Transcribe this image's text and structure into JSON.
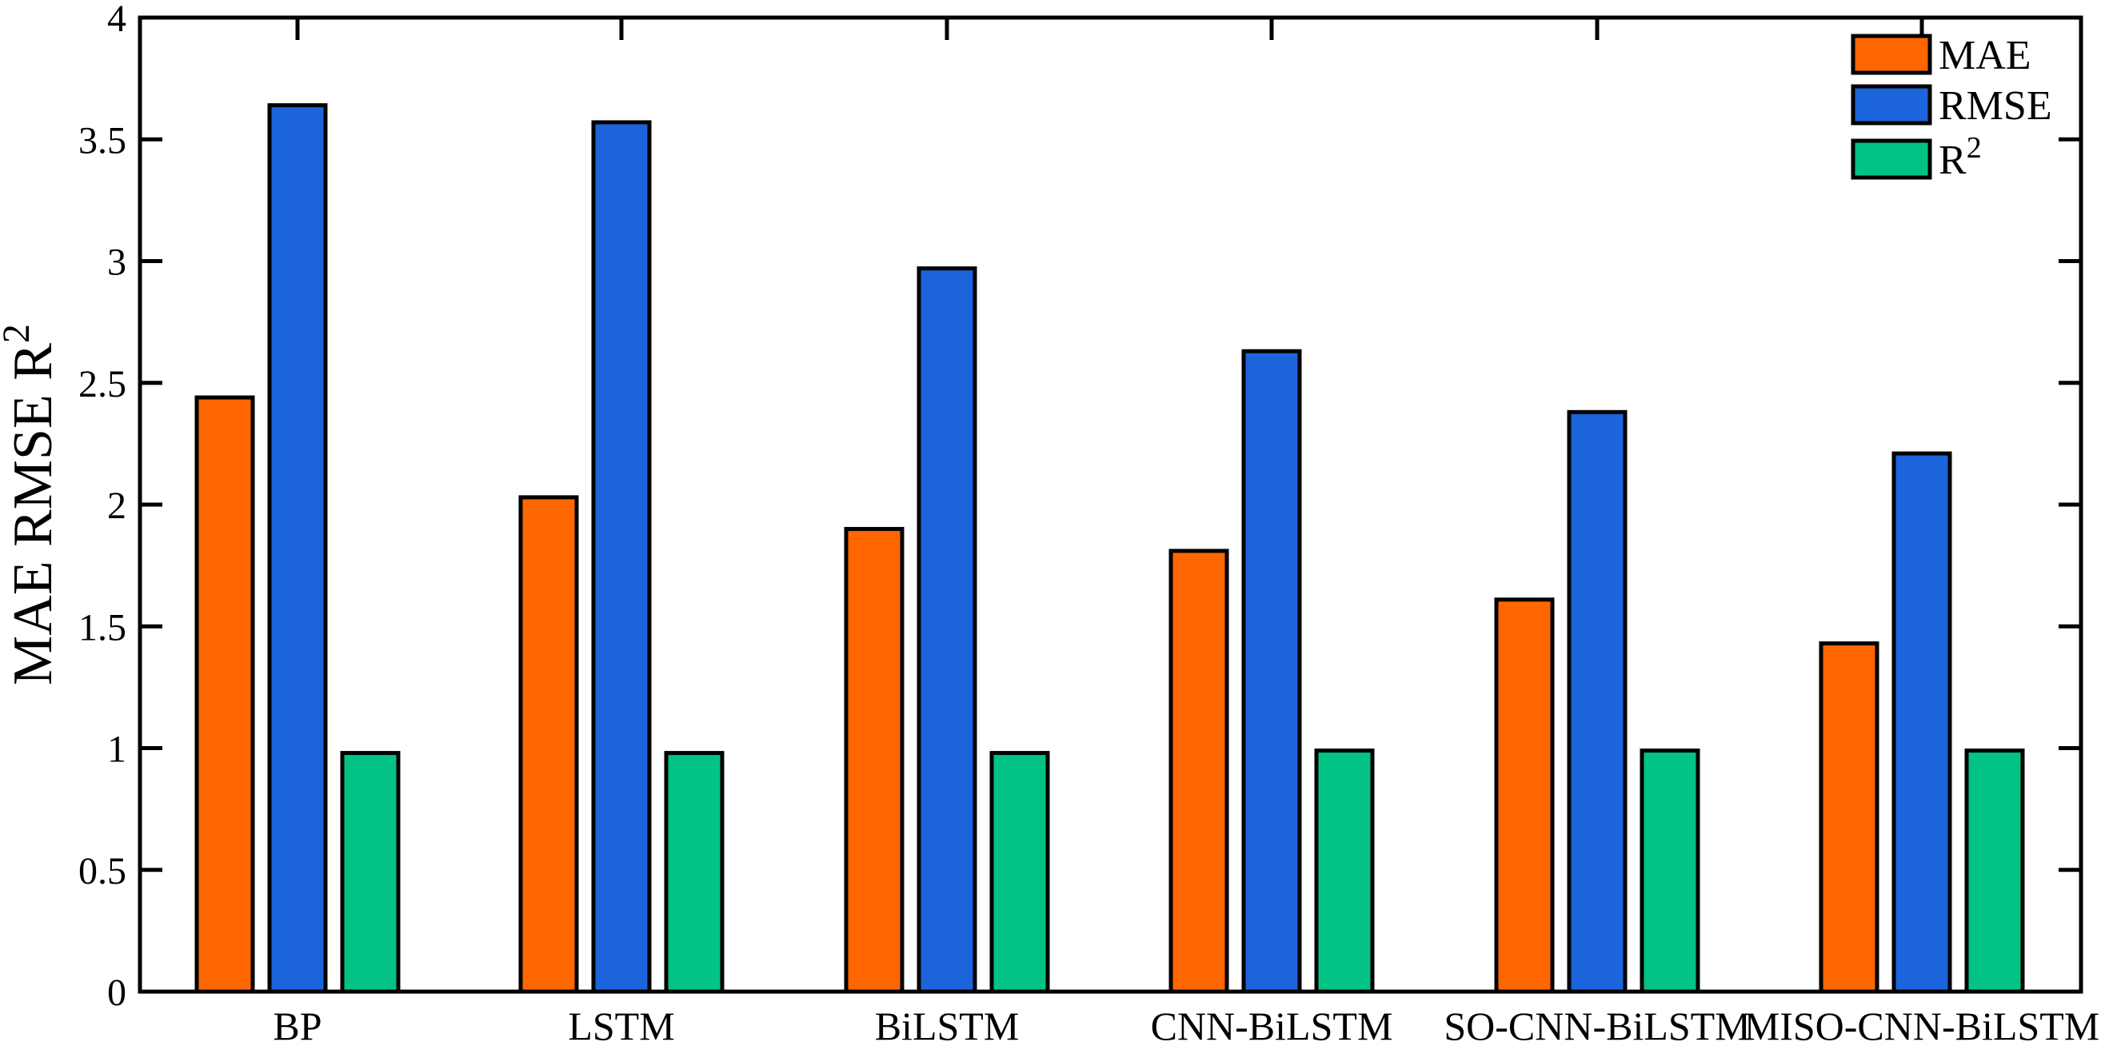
{
  "chart_data": {
    "type": "bar",
    "categories": [
      "BP",
      "LSTM",
      "BiLSTM",
      "CNN-BiLSTM",
      "SO-CNN-BiLSTM",
      "MISO-CNN-BiLSTM"
    ],
    "series": [
      {
        "name": "MAE",
        "name_base": "MAE",
        "name_sup": "",
        "color": "#FF6600",
        "values": [
          2.44,
          2.03,
          1.9,
          1.81,
          1.61,
          1.43
        ]
      },
      {
        "name": "RMSE",
        "name_base": "RMSE",
        "name_sup": "",
        "color": "#1B64DB",
        "values": [
          3.64,
          3.57,
          2.97,
          2.63,
          2.38,
          2.21
        ]
      },
      {
        "name": "R²",
        "name_base": "R",
        "name_sup": "2",
        "color": "#02C385",
        "values": [
          0.98,
          0.98,
          0.98,
          0.99,
          0.99,
          0.99
        ]
      }
    ],
    "title": "",
    "xlabel": "",
    "ylabel": {
      "display": "MAE  RMSE  R²",
      "base": "MAE  RMSE  R",
      "sup": "2"
    },
    "ylim": [
      0,
      4
    ],
    "ytick_step": 0.5,
    "yticks": [
      "0",
      "0.5",
      "1",
      "1.5",
      "2",
      "2.5",
      "3",
      "3.5",
      "4"
    ],
    "grid": "off",
    "legend": {
      "position": "top-right",
      "border": "none"
    },
    "frame_color": "#000000",
    "tick_color": "#000000",
    "text_color": "#000000",
    "bar_border_color": "#000000",
    "background_color": "#FFFFFF"
  }
}
